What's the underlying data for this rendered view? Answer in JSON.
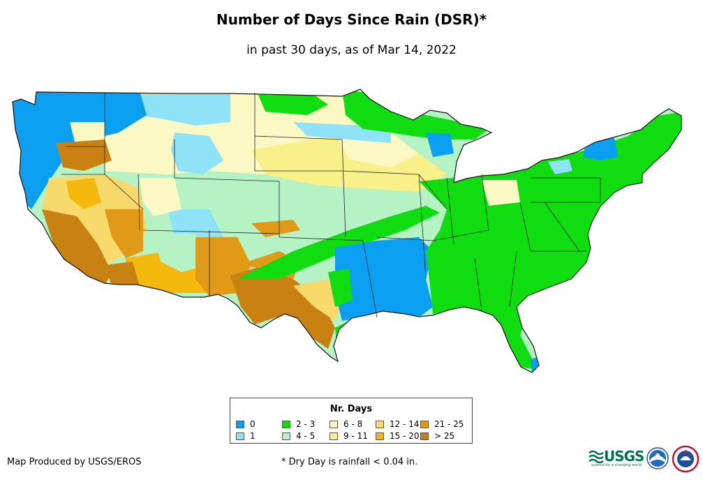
{
  "title": "Number of Days Since Rain (DSR)*",
  "subtitle": "in past 30 days, as of Mar 14, 2022",
  "legend": {
    "title": "Nr. Days",
    "items": [
      {
        "label": "0",
        "color": "#0a9ff0"
      },
      {
        "label": "1",
        "color": "#8ee3f8"
      },
      {
        "label": "2 - 3",
        "color": "#10dd10"
      },
      {
        "label": "4 - 5",
        "color": "#b5f3c5"
      },
      {
        "label": "6 - 8",
        "color": "#fbf8c3"
      },
      {
        "label": "9 - 11",
        "color": "#faf08a"
      },
      {
        "label": "12 - 14",
        "color": "#f7da6b"
      },
      {
        "label": "15 - 20",
        "color": "#f5b80c"
      },
      {
        "label": "21 - 25",
        "color": "#e09a17"
      },
      {
        "label": "> 25",
        "color": "#c98112"
      }
    ]
  },
  "credit": "Map Produced by USGS/EROS",
  "footnote": "* Dry Day is rainfall < 0.04 in.",
  "logos": {
    "usgs": "USGS",
    "usgs_tagline": "science for a changing world"
  }
}
